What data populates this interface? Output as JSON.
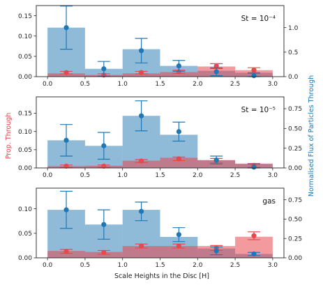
{
  "chart_data": [
    {
      "type": "bar",
      "title": "",
      "annotation": "St = 10⁻⁴",
      "x_edges": [
        0,
        0.5,
        1.0,
        1.5,
        2.0,
        2.5,
        3.0
      ],
      "x_centers": [
        0.25,
        0.75,
        1.25,
        1.75,
        2.25,
        2.75
      ],
      "xlim": [
        -0.15,
        3.15
      ],
      "ylim_left": [
        0,
        0.175
      ],
      "ylim_right": [
        0,
        1.45
      ],
      "yticks_left": [
        "0.00",
        "0.05",
        "0.10",
        "0.15"
      ],
      "yticks_left_values": [
        0,
        0.05,
        0.1,
        0.15
      ],
      "yticks_right": [
        "0.0",
        "0.5",
        "1.0"
      ],
      "yticks_right_values": [
        0,
        0.5,
        1.0
      ],
      "series": [
        {
          "axis": "left",
          "color": "#e8474c",
          "values": [
            0.008,
            0.004,
            0.008,
            0.011,
            0.025,
            0.016
          ],
          "markers": [
            0.01,
            0.004,
            0.01,
            0.012,
            0.026,
            0.016
          ],
          "errors": [
            0.003,
            0.003,
            0.003,
            0.004,
            0.006,
            0.006
          ]
        },
        {
          "axis": "right",
          "color": "#1f77b4",
          "values": [
            1.0,
            0.16,
            0.56,
            0.22,
            0.12,
            0.08
          ],
          "markers": [
            1.0,
            0.16,
            0.53,
            0.22,
            0.1,
            0.02
          ],
          "errors": [
            0.44,
            0.15,
            0.25,
            0.11,
            0.08,
            0.05
          ]
        }
      ]
    },
    {
      "type": "bar",
      "title": "",
      "annotation": "St = 10⁻⁵",
      "x_edges": [
        0,
        0.5,
        1.0,
        1.5,
        2.0,
        2.5,
        3.0
      ],
      "x_centers": [
        0.25,
        0.75,
        1.25,
        1.75,
        2.25,
        2.75
      ],
      "xlim": [
        -0.15,
        3.15
      ],
      "ylim_left": [
        0,
        0.195
      ],
      "ylim_right": [
        0,
        0.9
      ],
      "yticks_left": [
        "0.00",
        "0.05",
        "0.10",
        "0.15"
      ],
      "yticks_left_values": [
        0,
        0.05,
        0.1,
        0.15
      ],
      "yticks_right": [
        "0.00",
        "0.25",
        "0.50",
        "0.75"
      ],
      "yticks_right_values": [
        0,
        0.25,
        0.5,
        0.75
      ],
      "series": [
        {
          "axis": "left",
          "color": "#e8474c",
          "values": [
            0.005,
            0.006,
            0.02,
            0.028,
            0.021,
            0.012
          ],
          "markers": [
            0.005,
            0.005,
            0.019,
            0.025,
            0.02,
            0.007
          ],
          "errors": [
            0.003,
            0.003,
            0.004,
            0.005,
            0.006,
            0.005
          ]
        },
        {
          "axis": "right",
          "color": "#1f77b4",
          "values": [
            0.35,
            0.28,
            0.66,
            0.42,
            0.1,
            0.05
          ],
          "markers": [
            0.35,
            0.28,
            0.66,
            0.46,
            0.1,
            0.01
          ],
          "errors": [
            0.2,
            0.17,
            0.19,
            0.12,
            0.05,
            0.04
          ]
        }
      ]
    },
    {
      "type": "bar",
      "title": "",
      "annotation": "gas",
      "x_edges": [
        0,
        0.5,
        1.0,
        1.5,
        2.0,
        2.5,
        3.0
      ],
      "x_centers": [
        0.25,
        0.75,
        1.25,
        1.75,
        2.25,
        2.75
      ],
      "xlim": [
        -0.15,
        3.15
      ],
      "ylim_left": [
        0,
        0.142
      ],
      "ylim_right": [
        0,
        0.9
      ],
      "yticks_left": [
        "0.00",
        "0.05",
        "0.10"
      ],
      "yticks_left_values": [
        0,
        0.05,
        0.1
      ],
      "yticks_right": [
        "0.00",
        "0.25",
        "0.50",
        "0.75"
      ],
      "yticks_right_values": [
        0,
        0.25,
        0.5,
        0.75
      ],
      "series": [
        {
          "axis": "left",
          "color": "#e8474c",
          "values": [
            0.014,
            0.012,
            0.024,
            0.024,
            0.024,
            0.043
          ],
          "markers": [
            0.013,
            0.011,
            0.024,
            0.024,
            0.02,
            0.045
          ],
          "errors": [
            0.004,
            0.004,
            0.004,
            0.004,
            0.005,
            0.008
          ]
        },
        {
          "axis": "right",
          "color": "#1f77b4",
          "values": [
            0.62,
            0.43,
            0.62,
            0.27,
            0.12,
            0.05
          ],
          "markers": [
            0.62,
            0.43,
            0.6,
            0.3,
            0.09,
            0.05
          ],
          "errors": [
            0.24,
            0.19,
            0.12,
            0.09,
            0.05,
            0.02
          ]
        }
      ]
    }
  ],
  "xticks": [
    "0.0",
    "0.5",
    "1.0",
    "1.5",
    "2.0",
    "2.5",
    "3.0"
  ],
  "xticks_values": [
    0,
    0.5,
    1.0,
    1.5,
    2.0,
    2.5,
    3.0
  ],
  "xlabel": "Scale Heights in the Disc [H]",
  "ylabel_left": "Prop. Through",
  "ylabel_right": "Normalised Flux of Particles Through",
  "ylabel_left_color": "#e8474c",
  "ylabel_right_color": "#1f77b4"
}
